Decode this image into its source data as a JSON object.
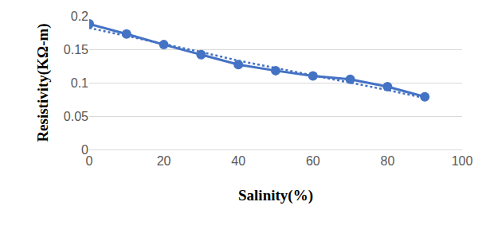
{
  "chart_data": {
    "type": "line",
    "x_label": "Salinity(%)",
    "y_label": "Resistivity(KΩ-m)",
    "x": [
      0,
      10,
      20,
      30,
      40,
      50,
      60,
      70,
      80,
      90
    ],
    "series": [
      {
        "color": "#4472c4",
        "line_style": "solid",
        "marker": "circle",
        "values": [
          0.188,
          0.173,
          0.157,
          0.142,
          0.127,
          0.118,
          0.11,
          0.105,
          0.094,
          0.079
        ]
      },
      {
        "color": "#4472c4",
        "line_style": "dotted",
        "marker": "none",
        "values": [
          0.182,
          0.17,
          0.158,
          0.146,
          0.133,
          0.122,
          0.111,
          0.1,
          0.089,
          0.077
        ]
      }
    ],
    "xlim": [
      0,
      100
    ],
    "xticks": [
      0,
      20,
      40,
      60,
      80,
      100
    ],
    "ylim": [
      0,
      0.2
    ],
    "yticks": [
      0,
      0.05,
      0.1,
      0.15,
      0.2
    ],
    "grid": "y"
  }
}
